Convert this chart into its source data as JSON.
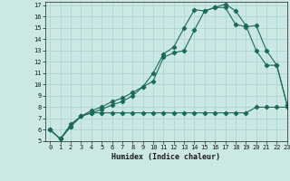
{
  "xlabel": "Humidex (Indice chaleur)",
  "bg_color": "#cbe8e4",
  "grid_color": "#b0d8d4",
  "line_color": "#1a6b5a",
  "xlim": [
    -0.5,
    23
  ],
  "ylim": [
    5,
    17.3
  ],
  "xticks": [
    0,
    1,
    2,
    3,
    4,
    5,
    6,
    7,
    8,
    9,
    10,
    11,
    12,
    13,
    14,
    15,
    16,
    17,
    18,
    19,
    20,
    21,
    22,
    23
  ],
  "yticks": [
    5,
    6,
    7,
    8,
    9,
    10,
    11,
    12,
    13,
    14,
    15,
    16,
    17
  ],
  "series1_x": [
    0,
    1,
    2,
    3,
    4,
    5,
    6,
    7,
    8,
    9,
    10,
    11,
    12,
    13,
    14,
    15,
    16,
    17,
    18,
    19,
    20,
    21,
    22,
    23
  ],
  "series1_y": [
    6.0,
    5.2,
    6.3,
    7.2,
    7.5,
    7.5,
    7.5,
    7.5,
    7.5,
    7.5,
    7.5,
    7.5,
    7.5,
    7.5,
    7.5,
    7.5,
    7.5,
    7.5,
    7.5,
    7.5,
    8.0,
    8.0,
    8.0,
    8.0
  ],
  "series2_x": [
    0,
    1,
    2,
    3,
    4,
    5,
    6,
    7,
    8,
    9,
    10,
    11,
    12,
    13,
    14,
    15,
    16,
    17,
    18,
    19,
    20,
    21,
    22,
    23
  ],
  "series2_y": [
    6.0,
    5.2,
    6.3,
    7.2,
    7.5,
    7.8,
    8.2,
    8.5,
    9.0,
    9.8,
    10.3,
    12.4,
    12.8,
    13.0,
    14.8,
    16.5,
    16.8,
    17.1,
    16.5,
    15.2,
    13.0,
    11.7,
    11.7,
    8.2
  ],
  "series3_x": [
    0,
    1,
    2,
    3,
    4,
    5,
    6,
    7,
    8,
    9,
    10,
    11,
    12,
    13,
    14,
    15,
    16,
    17,
    18,
    19,
    20,
    21,
    22,
    23
  ],
  "series3_y": [
    6.0,
    5.2,
    6.5,
    7.2,
    7.7,
    8.0,
    8.5,
    8.8,
    9.3,
    9.8,
    11.0,
    12.7,
    13.3,
    15.0,
    16.6,
    16.5,
    16.8,
    16.8,
    15.3,
    15.1,
    15.2,
    13.0,
    11.7,
    8.2
  ]
}
